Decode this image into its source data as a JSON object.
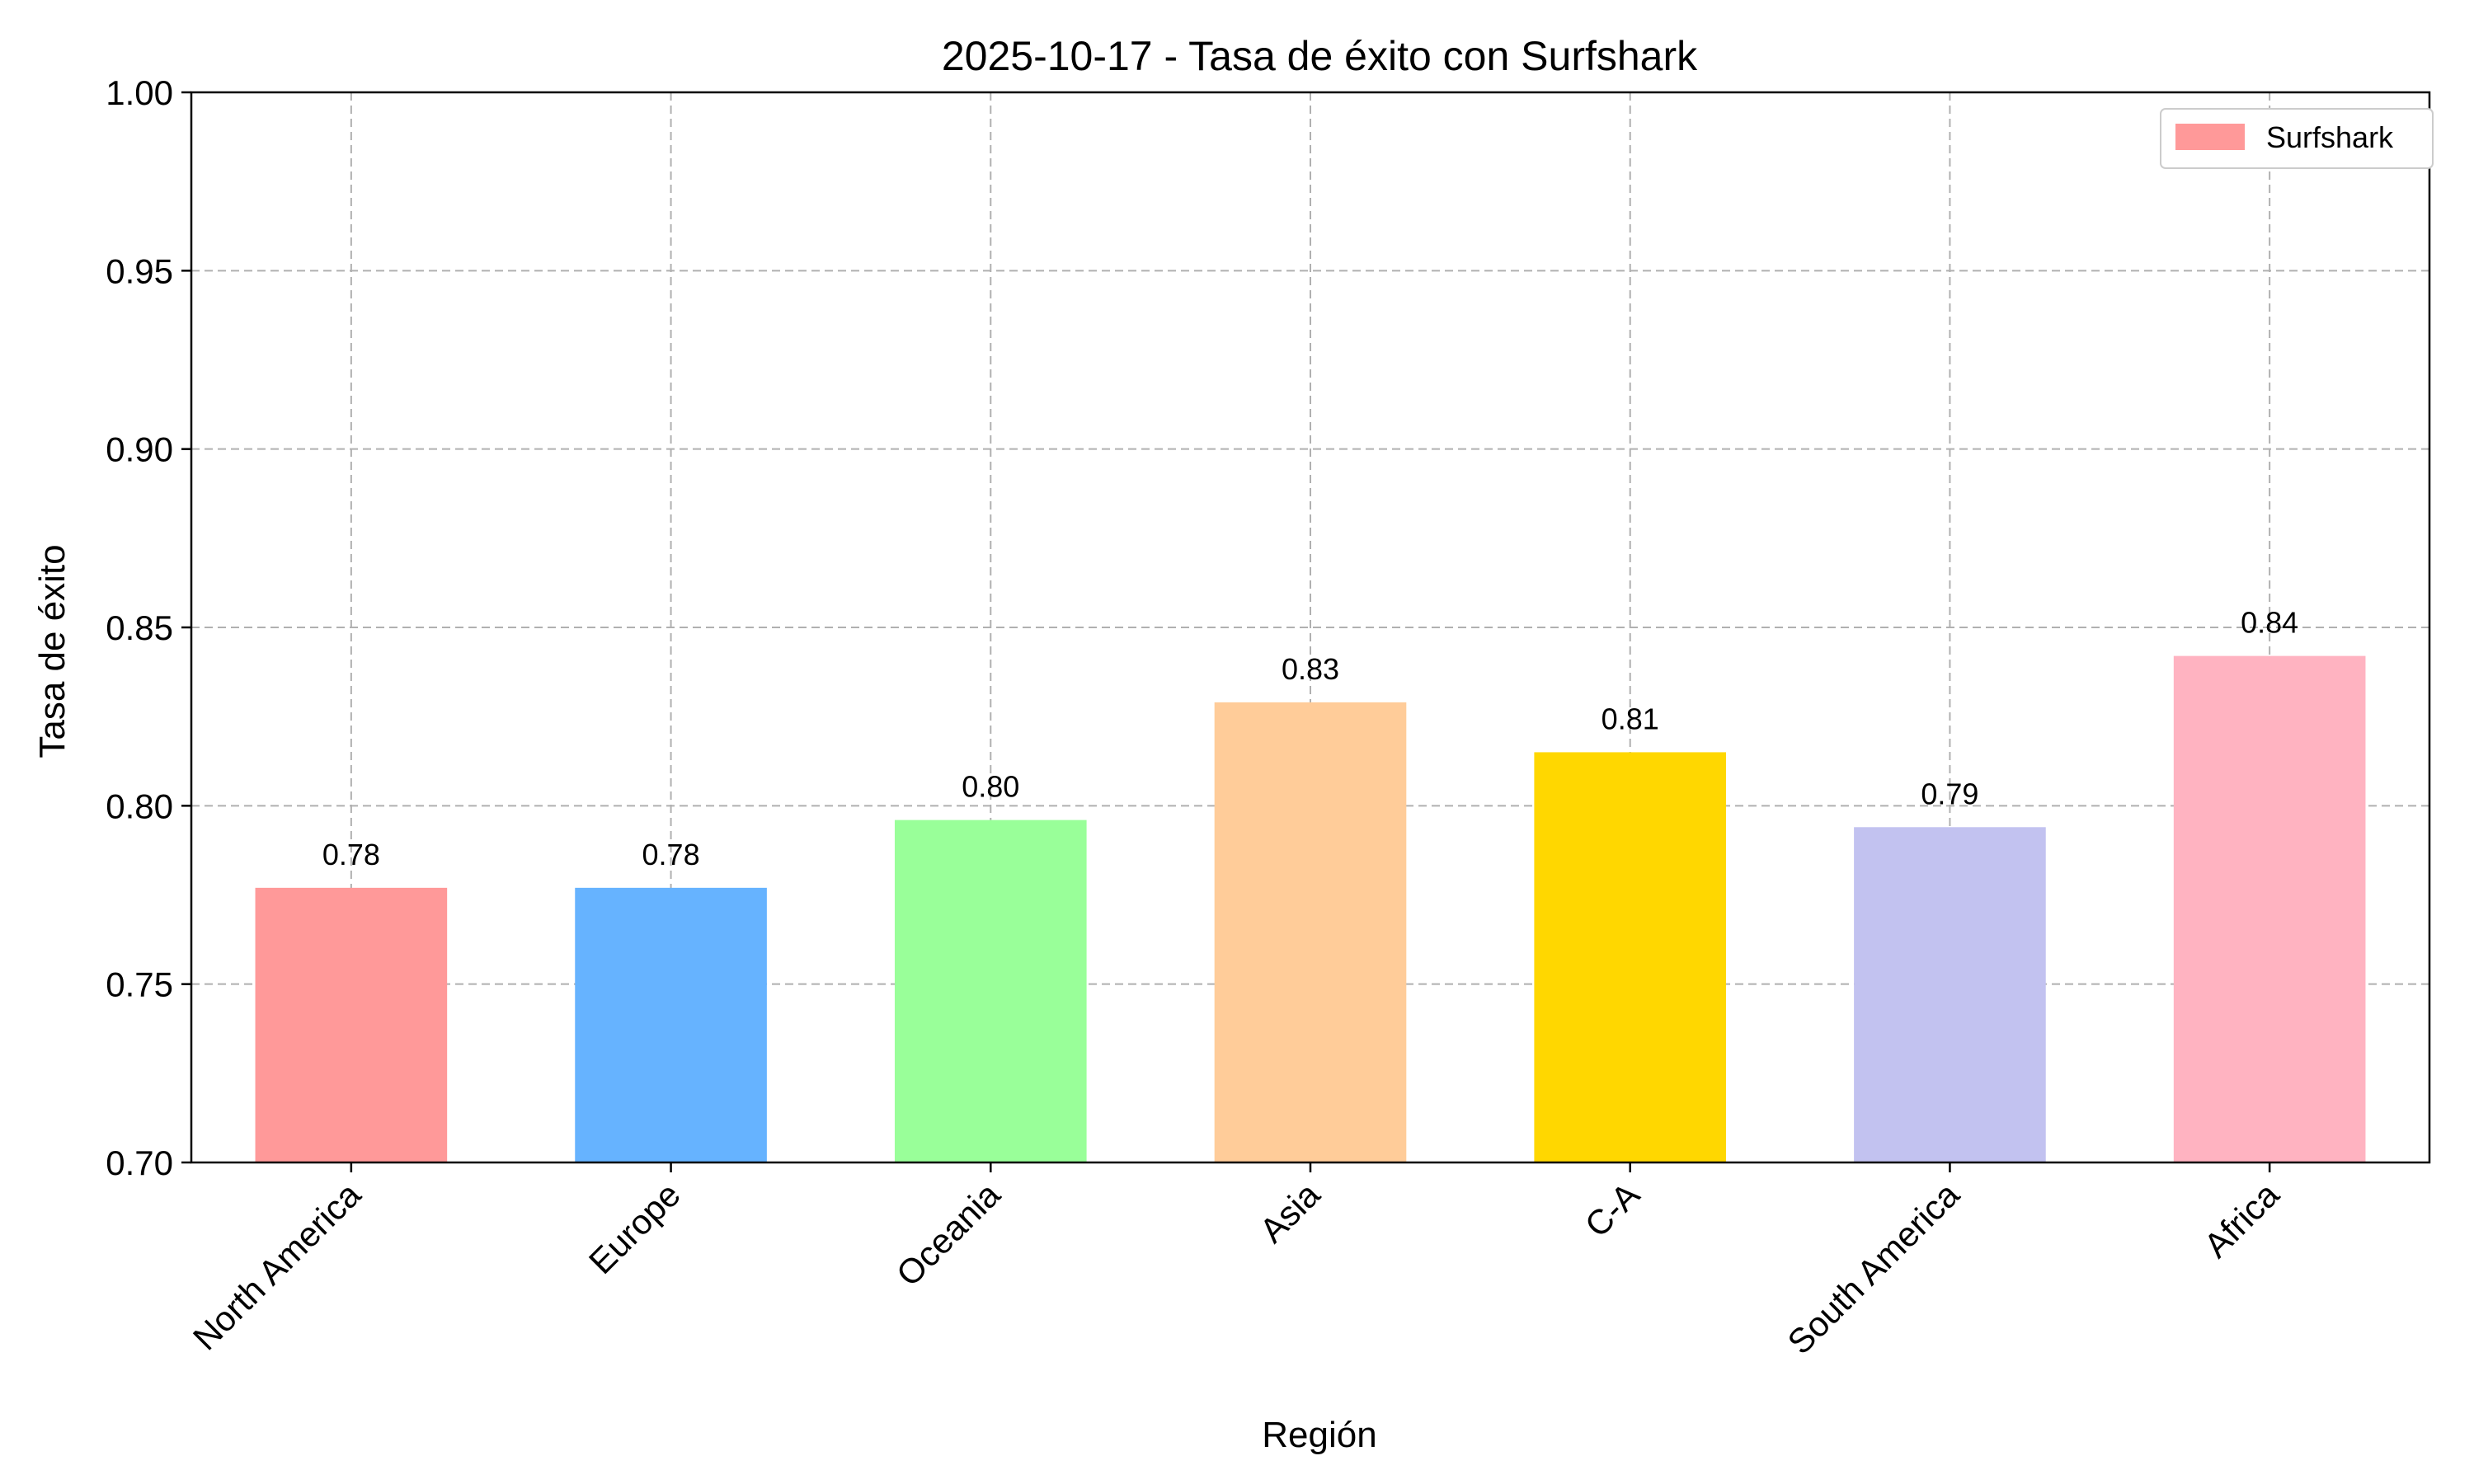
{
  "chart_data": {
    "type": "bar",
    "title": "2025-10-17 - Tasa de éxito con Surfshark",
    "xlabel": "Región",
    "ylabel": "Tasa de éxito",
    "categories": [
      "North America",
      "Europe",
      "Oceania",
      "Asia",
      "C-A",
      "South America",
      "Africa"
    ],
    "values": [
      0.777,
      0.777,
      0.796,
      0.829,
      0.815,
      0.794,
      0.842
    ],
    "value_labels": [
      "0.78",
      "0.78",
      "0.80",
      "0.83",
      "0.81",
      "0.79",
      "0.84"
    ],
    "bar_colors": [
      "#ff9999",
      "#66b3ff",
      "#99ff99",
      "#ffcc99",
      "#ffd700",
      "#c2c2f0",
      "#ffb3c1"
    ],
    "ylim": [
      0.7,
      1.0
    ],
    "yticks": [
      "0.70",
      "0.75",
      "0.80",
      "0.85",
      "0.90",
      "0.95",
      "1.00"
    ],
    "grid": true,
    "legend": {
      "position": "top-right",
      "entries": [
        {
          "label": "Surfshark",
          "color": "#ff9999"
        }
      ]
    }
  }
}
